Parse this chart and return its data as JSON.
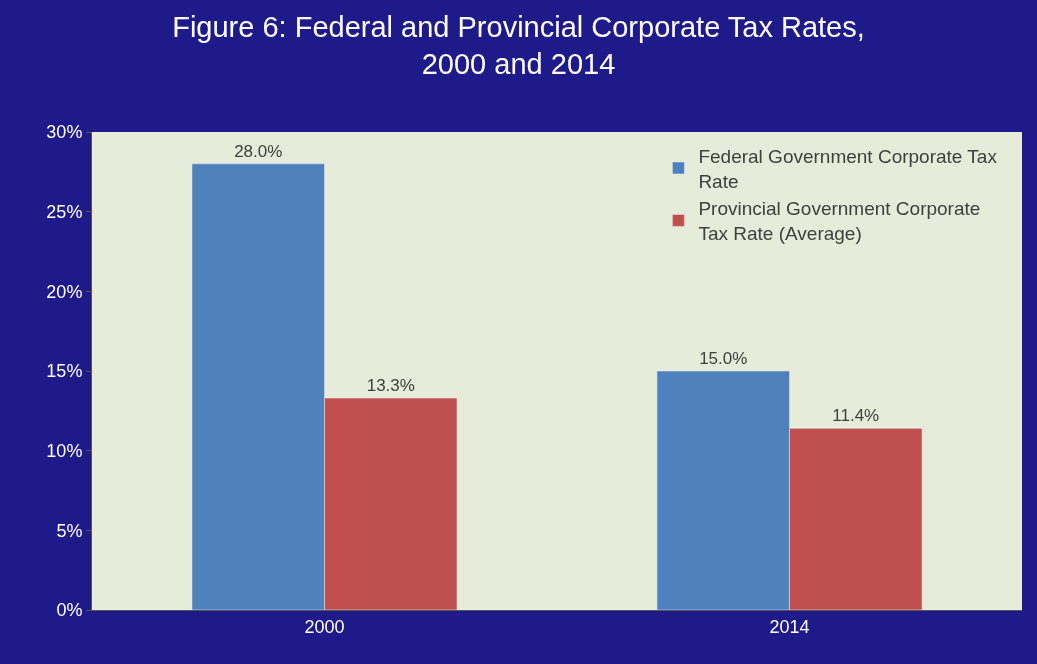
{
  "chart_data": {
    "type": "bar",
    "title": "Figure 6: Federal and Provincial Corporate Tax Rates, 2000 and 2014",
    "categories": [
      "2000",
      "2014"
    ],
    "series": [
      {
        "name": "Federal Government Corporate Tax Rate",
        "color": "#4f81bd",
        "values": [
          28.0,
          15.0
        ],
        "value_labels": [
          "28.0%",
          "15.0%"
        ]
      },
      {
        "name": "Provincial Government Corporate Tax Rate (Average)",
        "color": "#c0504d",
        "values": [
          13.3,
          11.4
        ],
        "value_labels": [
          "13.3%",
          "11.4%"
        ]
      }
    ],
    "ylim": [
      0,
      30
    ],
    "yticks": [
      {
        "value": 0,
        "label": "0%"
      },
      {
        "value": 5,
        "label": "5%"
      },
      {
        "value": 10,
        "label": "10%"
      },
      {
        "value": 15,
        "label": "15%"
      },
      {
        "value": 20,
        "label": "20%"
      },
      {
        "value": 25,
        "label": "25%"
      },
      {
        "value": 30,
        "label": "30%"
      }
    ],
    "grid": false,
    "legend": "top right"
  }
}
